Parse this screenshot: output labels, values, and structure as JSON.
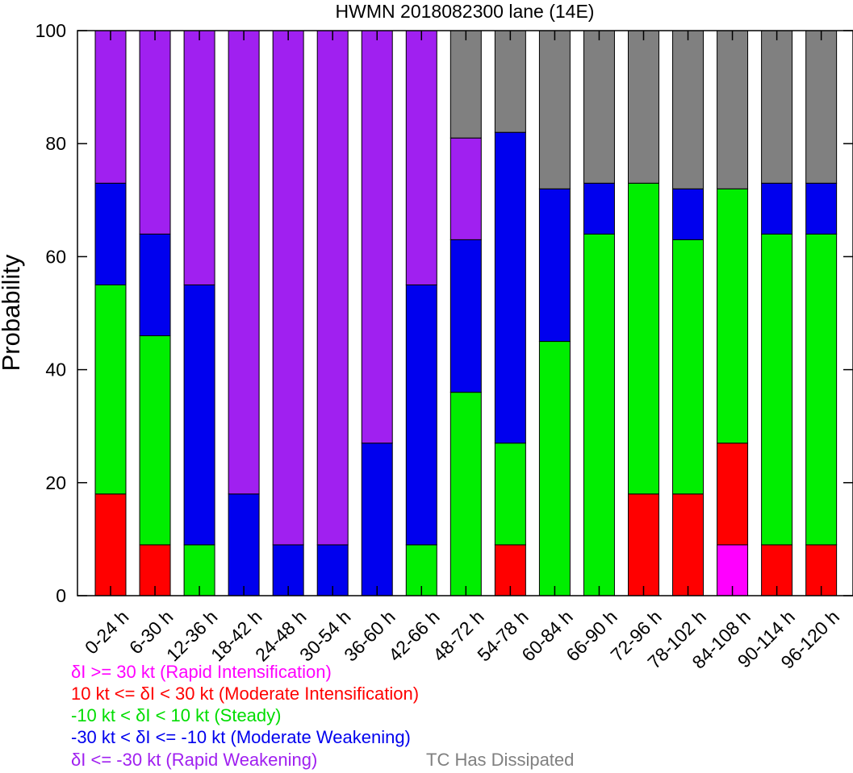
{
  "chart_data": {
    "type": "bar",
    "stacked": true,
    "title": "HWMN 2018082300 lane (14E)",
    "ylabel": "Probability",
    "xlabel": "",
    "ylim": [
      0,
      100
    ],
    "yticks": [
      0,
      20,
      40,
      60,
      80,
      100
    ],
    "grid": false,
    "categories": [
      "0-24 h",
      "6-30 h",
      "12-36 h",
      "18-42 h",
      "24-48 h",
      "30-54 h",
      "36-60 h",
      "42-66 h",
      "48-72 h",
      "54-78 h",
      "60-84 h",
      "66-90 h",
      "72-96 h",
      "78-102 h",
      "84-108 h",
      "90-114 h",
      "96-120 h"
    ],
    "series": [
      {
        "name": "δI >= 30 kt (Rapid Intensification)",
        "color": "#ff00ff",
        "values": [
          0,
          0,
          0,
          0,
          0,
          0,
          0,
          0,
          0,
          0,
          0,
          0,
          0,
          0,
          9,
          0,
          0
        ]
      },
      {
        "name": "10 kt <= δI < 30 kt (Moderate Intensification)",
        "color": "#ff0000",
        "values": [
          18,
          9,
          0,
          0,
          0,
          0,
          0,
          0,
          0,
          9,
          0,
          0,
          18,
          18,
          18,
          9,
          9
        ]
      },
      {
        "name": "-10 kt < δI < 10 kt (Steady)",
        "color": "#00ee00",
        "values": [
          37,
          37,
          9,
          0,
          0,
          0,
          0,
          9,
          36,
          18,
          45,
          64,
          55,
          45,
          45,
          55,
          55
        ]
      },
      {
        "name": "-30 kt < δI <= -10 kt (Moderate Weakening)",
        "color": "#0000ee",
        "values": [
          18,
          18,
          46,
          18,
          9,
          9,
          27,
          46,
          27,
          55,
          27,
          9,
          0,
          9,
          0,
          9,
          9
        ]
      },
      {
        "name": "δI <= -30 kt (Rapid Weakening)",
        "color": "#a020f0",
        "values": [
          27,
          36,
          45,
          82,
          91,
          91,
          73,
          45,
          18,
          0,
          0,
          0,
          0,
          0,
          0,
          0,
          0
        ]
      },
      {
        "name": "TC Has Dissipated",
        "color": "#808080",
        "values": [
          0,
          0,
          0,
          0,
          0,
          0,
          0,
          0,
          19,
          18,
          28,
          27,
          27,
          28,
          28,
          27,
          27
        ]
      }
    ]
  }
}
